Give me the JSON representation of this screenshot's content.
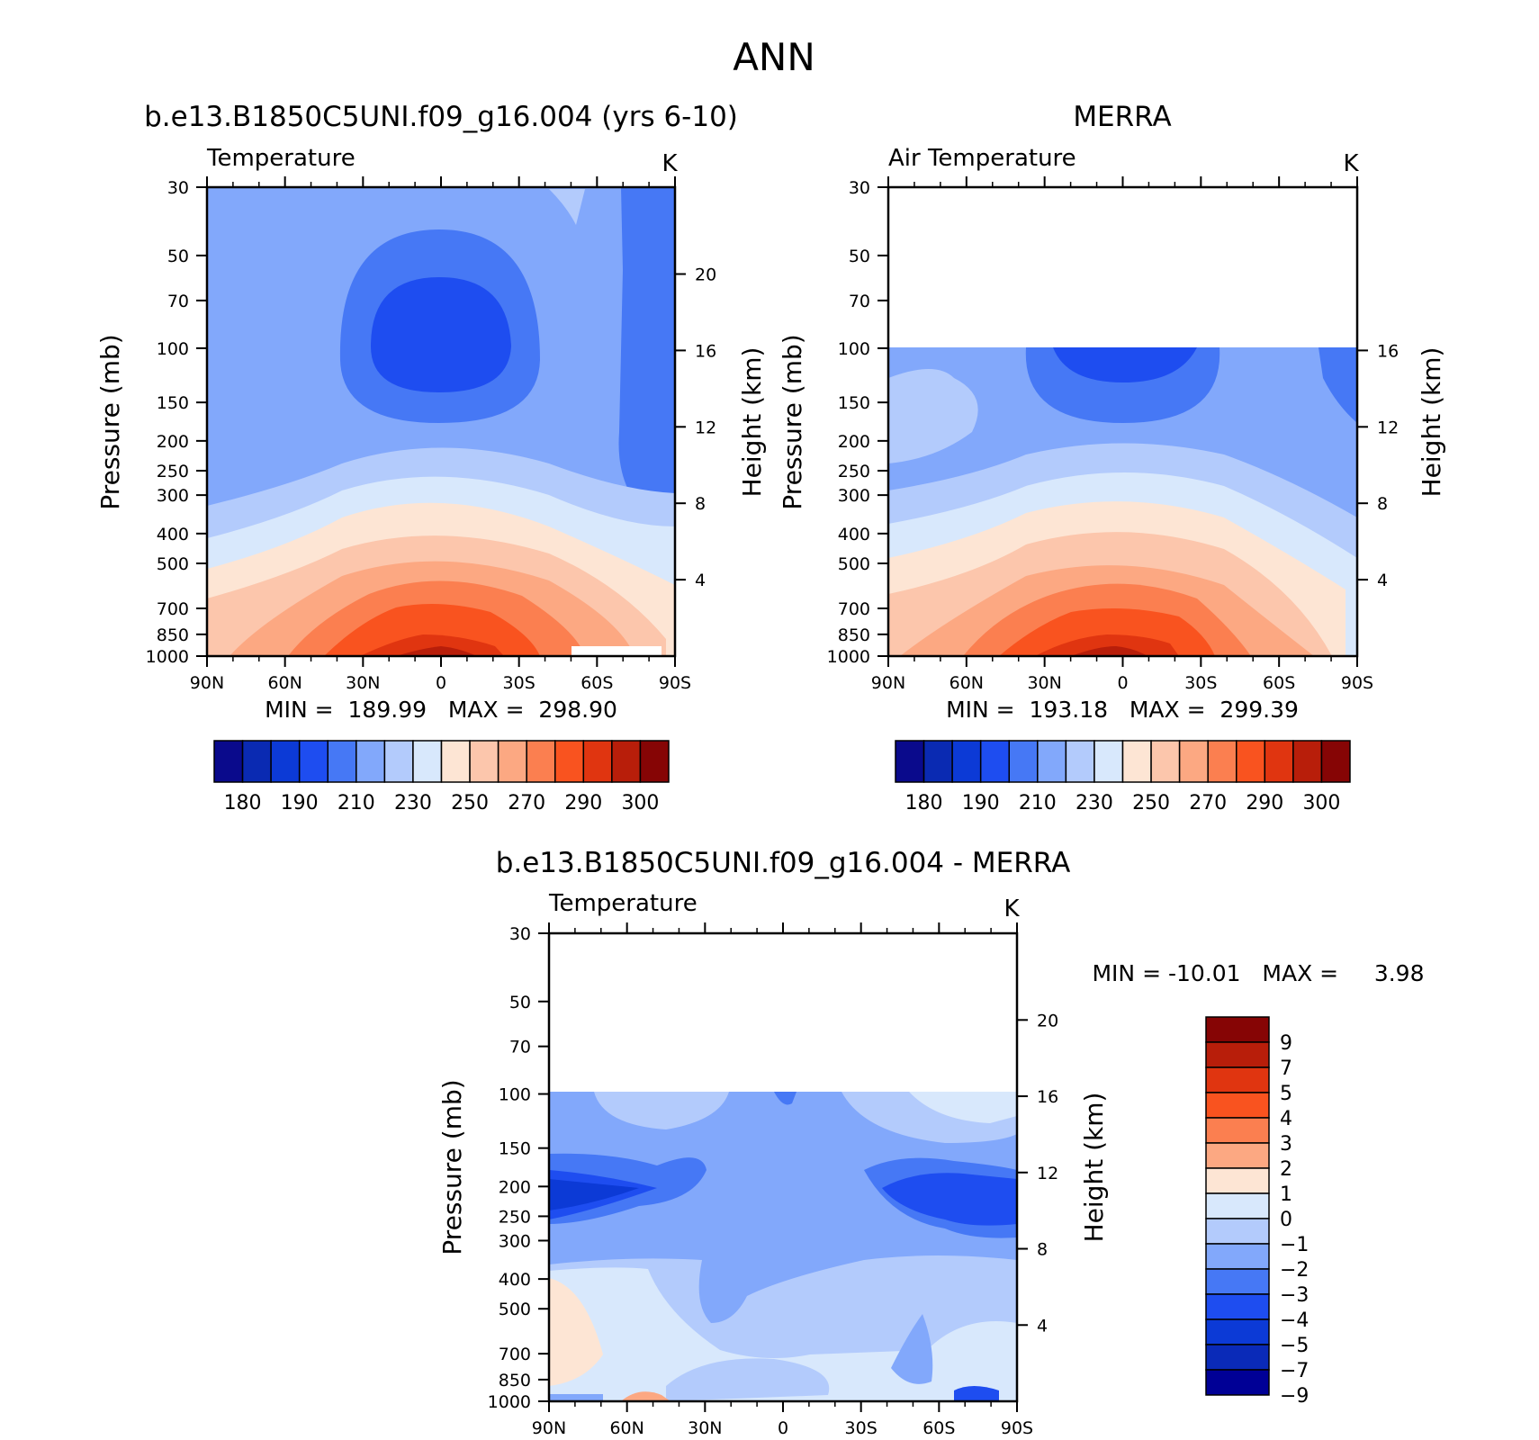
{
  "page_title": "ANN",
  "colors": {
    "abs_palette": [
      "#0a0a8c",
      "#0a2ab2",
      "#0c3ad6",
      "#1e4df0",
      "#4678f5",
      "#82a8fb",
      "#b3cbfc",
      "#d8e8fc",
      "#fde5d4",
      "#fcc6ac",
      "#fca882",
      "#fb7f50",
      "#f9531f",
      "#e03510",
      "#b81e0a",
      "#860505"
    ],
    "diff_palette": [
      "#000096",
      "#0a2ab8",
      "#0c3ad6",
      "#1e4df0",
      "#4678f5",
      "#82a8fb",
      "#b3cbfc",
      "#d8e8fc",
      "#fde5d4",
      "#fca882",
      "#fb7f50",
      "#f9531f",
      "#e03510",
      "#b81e0a",
      "#860505"
    ]
  },
  "chart_data": [
    {
      "type": "heatmap",
      "title": "b.e13.B1850C5UNI.f09_g16.004 (yrs 6-10)",
      "subtitle_left": "Temperature",
      "units": "K",
      "xlabel": "",
      "ylabel": "Pressure (mb)",
      "ylabel_right": "Height (km)",
      "x_ticklabels": [
        "90N",
        "60N",
        "30N",
        "0",
        "30S",
        "60S",
        "90S"
      ],
      "y_ticklabels": [
        "30",
        "50",
        "70",
        "100",
        "150",
        "200",
        "250",
        "300",
        "400",
        "500",
        "700",
        "850",
        "1000"
      ],
      "right_ticklabels": [
        "20",
        "16",
        "12",
        "8",
        "4"
      ],
      "ylim": [
        1000,
        30
      ],
      "log_y": true,
      "data_top_mb": 30,
      "stats": "MIN =  189.99   MAX =  298.90",
      "colorbar_labels": [
        "180",
        "190",
        "210",
        "230",
        "250",
        "270",
        "290",
        "300"
      ],
      "contour_levels": [
        180,
        185,
        190,
        200,
        210,
        220,
        230,
        240,
        250,
        260,
        270,
        280,
        285,
        290,
        295,
        300
      ]
    },
    {
      "type": "heatmap",
      "title": "MERRA",
      "subtitle_left": "Air Temperature",
      "units": "K",
      "xlabel": "",
      "ylabel": "Pressure (mb)",
      "ylabel_right": "Height (km)",
      "x_ticklabels": [
        "90N",
        "60N",
        "30N",
        "0",
        "30S",
        "60S",
        "90S"
      ],
      "y_ticklabels": [
        "30",
        "50",
        "70",
        "100",
        "150",
        "200",
        "250",
        "300",
        "400",
        "500",
        "700",
        "850",
        "1000"
      ],
      "right_ticklabels": [
        "16",
        "12",
        "8",
        "4"
      ],
      "ylim": [
        1000,
        30
      ],
      "log_y": true,
      "data_top_mb": 100,
      "stats": "MIN =  193.18   MAX =  299.39",
      "colorbar_labels": [
        "180",
        "190",
        "210",
        "230",
        "250",
        "270",
        "290",
        "300"
      ],
      "contour_levels": [
        180,
        185,
        190,
        200,
        210,
        220,
        230,
        240,
        250,
        260,
        270,
        280,
        285,
        290,
        295,
        300
      ]
    },
    {
      "type": "heatmap",
      "title": "b.e13.B1850C5UNI.f09_g16.004 - MERRA",
      "subtitle_left": "Temperature",
      "units": "K",
      "xlabel": "",
      "ylabel": "Pressure (mb)",
      "ylabel_right": "Height (km)",
      "x_ticklabels": [
        "90N",
        "60N",
        "30N",
        "0",
        "30S",
        "60S",
        "90S"
      ],
      "y_ticklabels": [
        "30",
        "50",
        "70",
        "100",
        "150",
        "200",
        "250",
        "300",
        "400",
        "500",
        "700",
        "850",
        "1000"
      ],
      "right_ticklabels": [
        "20",
        "16",
        "12",
        "8",
        "4"
      ],
      "ylim": [
        1000,
        30
      ],
      "log_y": true,
      "data_top_mb": 100,
      "stats": "MIN = -10.01   MAX =     3.98",
      "colorbar_labels": [
        "9",
        "7",
        "5",
        "4",
        "3",
        "2",
        "1",
        "0",
        "-1",
        "-2",
        "-3",
        "-4",
        "-5",
        "-7",
        "-9"
      ],
      "contour_levels": [
        -9,
        -7,
        -5,
        -4,
        -3,
        -2,
        -1,
        0,
        1,
        2,
        3,
        4,
        5,
        7,
        9
      ]
    }
  ]
}
